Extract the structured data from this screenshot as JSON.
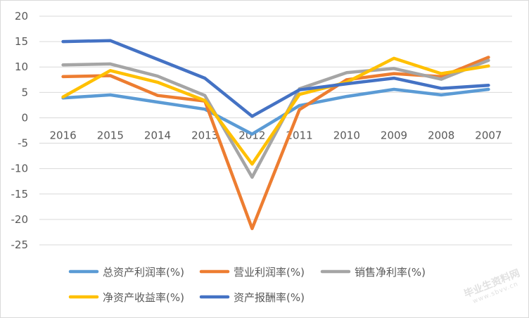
{
  "chart_data": {
    "type": "line",
    "title": "",
    "xlabel": "",
    "ylabel": "",
    "ylim": [
      -25,
      20
    ],
    "ytick_step": 5,
    "grid": "horizontal",
    "legend_position": "bottom",
    "categories": [
      "2016",
      "2015",
      "2014",
      "2013",
      "2012",
      "2011",
      "2010",
      "2009",
      "2008",
      "2007"
    ],
    "series": [
      {
        "name": "总资产利润率(%)",
        "color": "#5b9bd5",
        "values": [
          3.9,
          4.5,
          3.1,
          1.7,
          -3.2,
          2.4,
          4.2,
          5.6,
          4.5,
          5.6
        ]
      },
      {
        "name": "营业利润率(%)",
        "color": "#ed7d31",
        "values": [
          8.1,
          8.3,
          4.4,
          3.3,
          -21.8,
          1.6,
          7.5,
          8.7,
          8.1,
          11.9
        ]
      },
      {
        "name": "销售净利率(%)",
        "color": "#a5a5a5",
        "values": [
          10.4,
          10.6,
          8.2,
          4.4,
          -11.7,
          5.7,
          8.9,
          9.7,
          7.6,
          11.3
        ]
      },
      {
        "name": "净资产收益率(%)",
        "color": "#ffc000",
        "values": [
          4.1,
          9.3,
          7.0,
          3.4,
          -9.1,
          4.6,
          7.0,
          11.7,
          8.7,
          10.2
        ]
      },
      {
        "name": "资产报酬率(%)",
        "color": "#4472c4",
        "values": [
          15.0,
          15.2,
          11.5,
          7.8,
          0.3,
          5.5,
          6.7,
          7.8,
          5.8,
          6.4
        ]
      }
    ]
  },
  "watermark": {
    "text": "毕业生资料网",
    "sub": "www.sbvv.cn"
  }
}
